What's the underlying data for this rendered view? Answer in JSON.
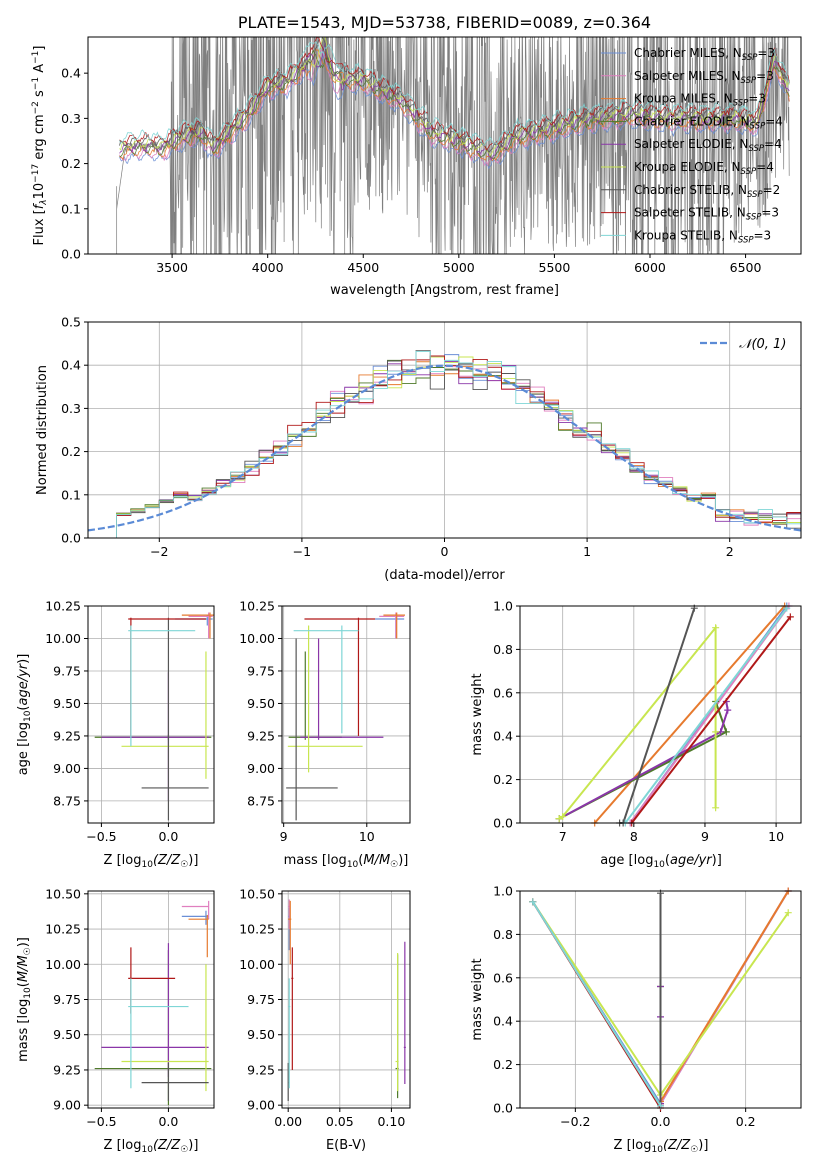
{
  "figure": {
    "title": "PLATE=1543, MJD=53738, FIBERID=0089, z=0.364"
  },
  "colors": {
    "Chabrier MILES": "#6b8fd6",
    "Salpeter MILES": "#e07fbf",
    "Kroupa MILES": "#e67a2e",
    "Chabrier ELODIE": "#4f7a2a",
    "Salpeter ELODIE": "#8a36a8",
    "Kroupa ELODIE": "#c8e650",
    "Chabrier STELIB": "#555555",
    "Salpeter STELIB": "#b01818",
    "Kroupa STELIB": "#7fd6d6",
    "data": "#7f7f7f",
    "normal": "#5b8bd6",
    "grid": "#b0b0b0"
  },
  "chart_data": [
    {
      "id": "spectrum",
      "type": "line",
      "xlabel": "wavelength [Angstrom, rest frame]",
      "ylabel": "Flux [fλ 10⁻¹⁷ erg cm⁻² s⁻¹ A⁻¹]",
      "xlim": [
        3060,
        6790
      ],
      "ylim": [
        0,
        0.48
      ],
      "xticks": [
        3500,
        4000,
        4500,
        5000,
        5500,
        6000,
        6500
      ],
      "yticks": [
        0.0,
        0.1,
        0.2,
        0.3,
        0.4
      ],
      "grid": false,
      "legend_position": "top-right",
      "data_wavelength_range": [
        3210,
        6730
      ],
      "model_anchor_x": [
        3210,
        3250,
        3350,
        3450,
        3550,
        3650,
        3720,
        3800,
        3900,
        4000,
        4100,
        4200,
        4300,
        4350,
        4500,
        4700,
        4860,
        5000,
        5170,
        5300,
        5500,
        5700,
        5900,
        6100,
        6300,
        6450,
        6560,
        6650,
        6730
      ],
      "model_anchor_y": [
        0.22,
        0.235,
        0.24,
        0.235,
        0.26,
        0.27,
        0.235,
        0.27,
        0.31,
        0.37,
        0.38,
        0.42,
        0.45,
        0.39,
        0.385,
        0.34,
        0.27,
        0.25,
        0.22,
        0.26,
        0.28,
        0.3,
        0.31,
        0.3,
        0.3,
        0.3,
        0.29,
        0.43,
        0.36
      ],
      "series": [
        {
          "name": "Chabrier MILES",
          "nssp": "3"
        },
        {
          "name": "Salpeter MILES",
          "nssp": "3"
        },
        {
          "name": "Kroupa MILES",
          "nssp": "3"
        },
        {
          "name": "Chabrier ELODIE",
          "nssp": "4"
        },
        {
          "name": "Salpeter ELODIE",
          "nssp": "4"
        },
        {
          "name": "Kroupa ELODIE",
          "nssp": "4"
        },
        {
          "name": "Chabrier STELIB",
          "nssp": "2"
        },
        {
          "name": "Salpeter STELIB",
          "nssp": "3"
        },
        {
          "name": "Kroupa STELIB",
          "nssp": "3"
        }
      ]
    },
    {
      "id": "residuals",
      "type": "line",
      "xlabel": "(data-model)/error",
      "ylabel": "Normed distribution",
      "xlim": [
        -2.5,
        2.5
      ],
      "ylim": [
        0,
        0.5
      ],
      "xticks": [
        -2,
        -1,
        0,
        1,
        2
      ],
      "yticks": [
        0.0,
        0.1,
        0.2,
        0.3,
        0.4,
        0.5
      ],
      "grid": true,
      "legend": "𝒩(0, 1)",
      "legend_position": "top-right",
      "bin_width": 0.1
    },
    {
      "id": "age_vs_Z",
      "type": "scatter",
      "xlabel_text": "Z [log",
      "xlabel_sub": "10",
      "xlabel_rest": "(Z/Z",
      "ylabel": "age  [log₁₀(age/yr)]",
      "xlim": [
        -0.6,
        0.34
      ],
      "ylim": [
        8.58,
        10.25
      ],
      "xticks": [
        -0.5,
        0.0
      ],
      "yticks": [
        8.75,
        9.0,
        9.25,
        9.5,
        9.75,
        10.0,
        10.25
      ],
      "grid": true
    },
    {
      "id": "age_vs_mass",
      "type": "scatter",
      "xlabel": "mass [log₁₀(M/M☉)]",
      "xlim": [
        8.98,
        10.52
      ],
      "ylim": [
        8.58,
        10.25
      ],
      "xticks": [
        9,
        10
      ],
      "yticks": [
        8.75,
        9.0,
        9.25,
        9.5,
        9.75,
        10.0,
        10.25
      ],
      "grid": true
    },
    {
      "id": "cumulative_age",
      "type": "line",
      "xlabel": "age  [log₁₀(age/yr)]",
      "ylabel": "mass weight",
      "xlim": [
        6.4,
        10.35
      ],
      "ylim": [
        0,
        1.0
      ],
      "xticks": [
        7,
        8,
        9,
        10
      ],
      "yticks": [
        0.0,
        0.2,
        0.4,
        0.6,
        0.8,
        1.0
      ],
      "grid": true,
      "curves": [
        {
          "name": "Chabrier MILES",
          "x": [
            7.95,
            10.15
          ],
          "y": [
            0.0,
            1.0
          ]
        },
        {
          "name": "Salpeter MILES",
          "x": [
            7.95,
            10.18
          ],
          "y": [
            0.0,
            1.0
          ]
        },
        {
          "name": "Kroupa MILES",
          "x": [
            7.45,
            10.12
          ],
          "y": [
            0.0,
            1.0
          ]
        },
        {
          "name": "Chabrier ELODIE",
          "x": [
            6.95,
            9.3,
            9.15
          ],
          "y": [
            0.02,
            0.42,
            0.56
          ]
        },
        {
          "name": "Salpeter ELODIE",
          "x": [
            6.95,
            9.22,
            9.32,
            9.3
          ],
          "y": [
            0.02,
            0.42,
            0.52,
            0.56
          ]
        },
        {
          "name": "Kroupa ELODIE",
          "x": [
            6.95,
            7.0,
            9.15,
            9.15,
            9.15
          ],
          "y": [
            0.02,
            0.03,
            0.9,
            0.42,
            0.07
          ]
        },
        {
          "name": "Chabrier STELIB",
          "x": [
            7.8,
            7.85,
            8.85
          ],
          "y": [
            0.0,
            0.0,
            0.99
          ]
        },
        {
          "name": "Salpeter STELIB",
          "x": [
            7.97,
            10.2
          ],
          "y": [
            0.0,
            0.95
          ]
        },
        {
          "name": "Kroupa STELIB",
          "x": [
            7.88,
            10.15
          ],
          "y": [
            0.0,
            0.99
          ]
        }
      ]
    },
    {
      "id": "mass_vs_Z",
      "type": "scatter",
      "xlabel_text": "Z [log",
      "xlabel_sub": "10",
      "xlabel_rest": "(Z/Z",
      "ylabel": "mass [log₁₀(M/M☉)]",
      "xlim": [
        -0.6,
        0.34
      ],
      "ylim": [
        8.98,
        10.52
      ],
      "xticks": [
        -0.5,
        0.0
      ],
      "yticks": [
        9.0,
        9.25,
        9.5,
        9.75,
        10.0,
        10.25,
        10.5
      ],
      "grid": true
    },
    {
      "id": "mass_vs_ebv",
      "type": "scatter",
      "xlabel": "E(B-V)",
      "xlim": [
        -0.006,
        0.118
      ],
      "ylim": [
        8.98,
        10.52
      ],
      "xticks": [
        0.0,
        0.05,
        0.1
      ],
      "yticks": [
        9.0,
        9.25,
        9.5,
        9.75,
        10.0,
        10.25,
        10.5
      ],
      "grid": true
    },
    {
      "id": "cumulative_Z",
      "type": "line",
      "xlabel_text": "Z [log",
      "xlabel_sub": "10",
      "xlabel_rest": "(Z/Z",
      "ylabel": "mass weight",
      "xlim": [
        -0.33,
        0.33
      ],
      "ylim": [
        0,
        1.0
      ],
      "xticks": [
        -0.2,
        0.0,
        0.2
      ],
      "yticks": [
        0.0,
        0.2,
        0.4,
        0.6,
        0.8,
        1.0
      ],
      "grid": true,
      "curves": [
        {
          "name": "Chabrier MILES",
          "x": [
            -0.3,
            0.0,
            0.3
          ],
          "y": [
            0.95,
            0.02,
            1.0
          ]
        },
        {
          "name": "Salpeter MILES",
          "x": [
            0.0,
            0.3
          ],
          "y": [
            0.02,
            1.0
          ]
        },
        {
          "name": "Kroupa MILES",
          "x": [
            0.0,
            0.3
          ],
          "y": [
            0.03,
            1.0
          ]
        },
        {
          "name": "Chabrier ELODIE",
          "x": [
            0.0,
            0.0
          ],
          "y": [
            0.02,
            0.56
          ]
        },
        {
          "name": "Salpeter ELODIE",
          "x": [
            0.0,
            0.0,
            0.0
          ],
          "y": [
            0.02,
            0.42,
            0.56
          ]
        },
        {
          "name": "Kroupa ELODIE",
          "x": [
            -0.3,
            0.0,
            0.3
          ],
          "y": [
            0.95,
            0.06,
            0.9
          ]
        },
        {
          "name": "Chabrier STELIB",
          "x": [
            0.0,
            0.0
          ],
          "y": [
            0.01,
            0.99
          ]
        },
        {
          "name": "Salpeter STELIB",
          "x": [
            -0.3,
            0.0
          ],
          "y": [
            0.95,
            0.0
          ]
        },
        {
          "name": "Kroupa STELIB",
          "x": [
            -0.3,
            0.0
          ],
          "y": [
            0.95,
            0.01
          ]
        }
      ]
    }
  ],
  "ssp_errorbars": {
    "age_vs_Z": [
      {
        "name": "Chabrier MILES",
        "x": 0.29,
        "y": 10.15,
        "xlo": 0.05,
        "xhi": 0.33,
        "ylo": 10.1,
        "yhi": 10.18
      },
      {
        "name": "Salpeter MILES",
        "x": 0.3,
        "y": 10.17,
        "xlo": 0.15,
        "xhi": 0.33,
        "ylo": 10.0,
        "yhi": 10.2
      },
      {
        "name": "Kroupa MILES",
        "x": 0.31,
        "y": 10.18,
        "xlo": 0.1,
        "xhi": 0.34,
        "ylo": 10.0,
        "yhi": 10.2
      },
      {
        "name": "Chabrier ELODIE",
        "x": 0.0,
        "y": 9.24,
        "xlo": -0.55,
        "xhi": 0.32,
        "ylo": 9.22,
        "yhi": 9.26
      },
      {
        "name": "Salpeter ELODIE",
        "x": 0.0,
        "y": 9.24,
        "xlo": -0.5,
        "xhi": 0.3,
        "ylo": 8.75,
        "yhi": 9.74
      },
      {
        "name": "Kroupa ELODIE",
        "x": 0.28,
        "y": 9.17,
        "xlo": -0.35,
        "xhi": 0.3,
        "ylo": 8.92,
        "yhi": 9.9
      },
      {
        "name": "Chabrier STELIB",
        "x": 0.0,
        "y": 8.85,
        "xlo": -0.2,
        "xhi": 0.3,
        "ylo": 8.6,
        "yhi": 10.16
      },
      {
        "name": "Salpeter STELIB",
        "x": -0.28,
        "y": 10.15,
        "xlo": -0.3,
        "xhi": 0.28,
        "ylo": 9.25,
        "yhi": 10.16
      },
      {
        "name": "Kroupa STELIB",
        "x": -0.28,
        "y": 10.06,
        "xlo": -0.3,
        "xhi": 0.2,
        "ylo": 9.17,
        "yhi": 10.1
      }
    ],
    "age_vs_mass": [
      {
        "name": "Chabrier MILES",
        "x": 10.35,
        "y": 10.15,
        "xlo": 10.1,
        "xhi": 10.45,
        "ylo": 10.0,
        "yhi": 10.18
      },
      {
        "name": "Salpeter MILES",
        "x": 10.35,
        "y": 10.17,
        "xlo": 10.15,
        "xhi": 10.45,
        "ylo": 10.0,
        "yhi": 10.2
      },
      {
        "name": "Kroupa MILES",
        "x": 10.36,
        "y": 10.18,
        "xlo": 10.2,
        "xhi": 10.46,
        "ylo": 10.0,
        "yhi": 10.2
      },
      {
        "name": "Chabrier ELODIE",
        "x": 9.26,
        "y": 9.24,
        "xlo": 9.06,
        "xhi": 9.7,
        "ylo": 9.22,
        "yhi": 9.9
      },
      {
        "name": "Salpeter ELODIE",
        "x": 9.42,
        "y": 9.24,
        "xlo": 9.2,
        "xhi": 10.2,
        "ylo": 9.22,
        "yhi": 10.0
      },
      {
        "name": "Kroupa ELODIE",
        "x": 9.3,
        "y": 9.17,
        "xlo": 9.05,
        "xhi": 9.95,
        "ylo": 8.97,
        "yhi": 10.1
      },
      {
        "name": "Chabrier STELIB",
        "x": 9.15,
        "y": 8.85,
        "xlo": 9.03,
        "xhi": 9.65,
        "ylo": 8.6,
        "yhi": 10.0
      },
      {
        "name": "Salpeter STELIB",
        "x": 9.9,
        "y": 10.15,
        "xlo": 9.25,
        "xhi": 10.1,
        "ylo": 9.25,
        "yhi": 10.16
      },
      {
        "name": "Kroupa STELIB",
        "x": 9.7,
        "y": 10.06,
        "xlo": 9.12,
        "xhi": 9.9,
        "ylo": 9.27,
        "yhi": 10.1
      }
    ],
    "mass_vs_Z": [
      {
        "name": "Chabrier MILES",
        "x": 0.28,
        "y": 10.34,
        "xlo": 0.1,
        "xhi": 0.3,
        "ylo": 10.28,
        "yhi": 10.38
      },
      {
        "name": "Salpeter MILES",
        "x": 0.3,
        "y": 10.41,
        "xlo": 0.1,
        "xhi": 0.3,
        "ylo": 10.32,
        "yhi": 10.45
      },
      {
        "name": "Kroupa MILES",
        "x": 0.29,
        "y": 10.32,
        "xlo": 0.15,
        "xhi": 0.3,
        "ylo": 10.05,
        "yhi": 10.35
      },
      {
        "name": "Chabrier ELODIE",
        "x": 0.0,
        "y": 9.26,
        "xlo": -0.55,
        "xhi": 0.32,
        "ylo": 9.0,
        "yhi": 10.1
      },
      {
        "name": "Salpeter ELODIE",
        "x": 0.0,
        "y": 9.41,
        "xlo": -0.5,
        "xhi": 0.3,
        "ylo": 9.2,
        "yhi": 10.15
      },
      {
        "name": "Kroupa ELODIE",
        "x": 0.28,
        "y": 9.31,
        "xlo": -0.35,
        "xhi": 0.3,
        "ylo": 9.1,
        "yhi": 10.0
      },
      {
        "name": "Chabrier STELIB",
        "x": 0.0,
        "y": 9.16,
        "xlo": -0.2,
        "xhi": 0.3,
        "ylo": 9.03,
        "yhi": 9.3
      },
      {
        "name": "Salpeter STELIB",
        "x": -0.28,
        "y": 9.9,
        "xlo": -0.3,
        "xhi": 0.05,
        "ylo": 9.65,
        "yhi": 10.12
      },
      {
        "name": "Kroupa STELIB",
        "x": -0.28,
        "y": 9.7,
        "xlo": -0.3,
        "xhi": 0.15,
        "ylo": 9.12,
        "yhi": 9.9
      }
    ],
    "mass_vs_ebv": [
      {
        "name": "Chabrier MILES",
        "x": 0.001,
        "y": 10.34,
        "xlo": 0.0,
        "xhi": 0.002,
        "ylo": 10.1,
        "yhi": 10.4
      },
      {
        "name": "Salpeter MILES",
        "x": 0.001,
        "y": 10.41,
        "xlo": 0.0,
        "xhi": 0.002,
        "ylo": 10.25,
        "yhi": 10.46
      },
      {
        "name": "Kroupa MILES",
        "x": 0.002,
        "y": 10.32,
        "xlo": 0.0,
        "xhi": 0.003,
        "ylo": 10.0,
        "yhi": 10.45
      },
      {
        "name": "Chabrier ELODIE",
        "x": 0.106,
        "y": 9.26,
        "xlo": 0.104,
        "xhi": 0.107,
        "ylo": 9.05,
        "yhi": 10.07
      },
      {
        "name": "Salpeter ELODIE",
        "x": 0.113,
        "y": 9.41,
        "xlo": 0.112,
        "xhi": 0.114,
        "ylo": 9.15,
        "yhi": 10.16
      },
      {
        "name": "Kroupa ELODIE",
        "x": 0.106,
        "y": 9.31,
        "xlo": 0.104,
        "xhi": 0.107,
        "ylo": 9.1,
        "yhi": 10.08
      },
      {
        "name": "Chabrier STELIB",
        "x": 0.0,
        "y": 9.16,
        "xlo": 0.0,
        "xhi": 0.001,
        "ylo": 9.03,
        "yhi": 9.3
      },
      {
        "name": "Salpeter STELIB",
        "x": 0.004,
        "y": 9.9,
        "xlo": 0.003,
        "xhi": 0.005,
        "ylo": 9.25,
        "yhi": 10.12
      },
      {
        "name": "Kroupa STELIB",
        "x": 0.001,
        "y": 9.7,
        "xlo": 0.0,
        "xhi": 0.002,
        "ylo": 9.12,
        "yhi": 9.9
      }
    ]
  }
}
